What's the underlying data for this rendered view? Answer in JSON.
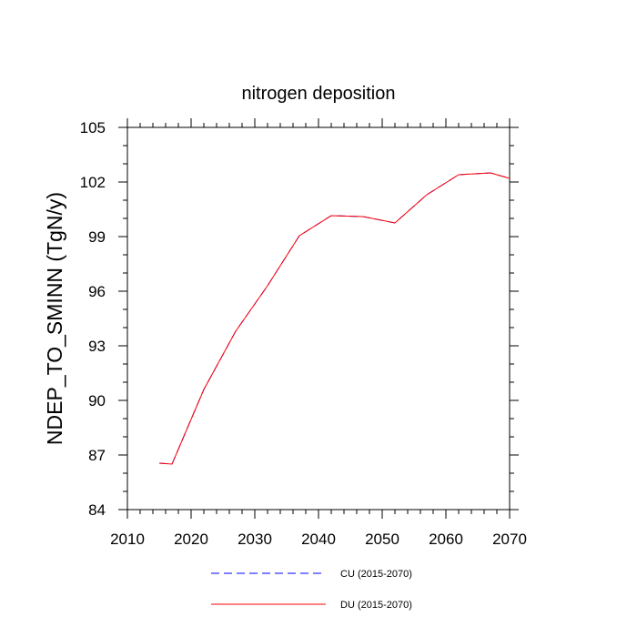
{
  "chart_data": {
    "type": "line",
    "title": "nitrogen deposition",
    "xlabel": "",
    "ylabel": "NDEP_TO_SMINN  (TgN/y)",
    "xlim": [
      2010,
      2070
    ],
    "ylim": [
      84,
      105
    ],
    "x_ticks": [
      2010,
      2020,
      2030,
      2040,
      2050,
      2060,
      2070
    ],
    "y_ticks": [
      84,
      87,
      90,
      93,
      96,
      99,
      102,
      105
    ],
    "legend_position": "bottom-center",
    "grid": false,
    "series": [
      {
        "name": "CU (2015-2070)",
        "color": "#0000ff",
        "style": "dashed",
        "x": [
          2015,
          2017,
          2022,
          2027,
          2032,
          2037,
          2042,
          2047,
          2052,
          2057,
          2062,
          2067,
          2070
        ],
        "y": [
          86.55,
          86.5,
          90.6,
          93.8,
          96.3,
          99.05,
          100.15,
          100.1,
          99.75,
          101.3,
          102.4,
          102.5,
          102.2
        ]
      },
      {
        "name": "DU (2015-2070)",
        "color": "#ff0000",
        "style": "solid",
        "x": [
          2015,
          2017,
          2022,
          2027,
          2032,
          2037,
          2042,
          2047,
          2052,
          2057,
          2062,
          2067,
          2070
        ],
        "y": [
          86.55,
          86.5,
          90.6,
          93.8,
          96.3,
          99.05,
          100.15,
          100.1,
          99.75,
          101.3,
          102.4,
          102.5,
          102.2
        ]
      }
    ]
  }
}
